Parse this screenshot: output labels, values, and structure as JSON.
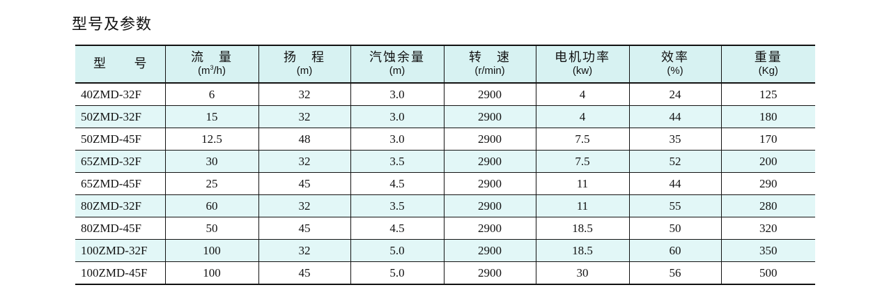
{
  "title": "型号及参数",
  "colors": {
    "header_bg": "#d7f2f2",
    "alt_row_bg": "#e2f7f7",
    "border": "#111111"
  },
  "table": {
    "headers": [
      {
        "label_a": "型",
        "label_b": "号",
        "unit": ""
      },
      {
        "label": "流　量",
        "unit_pre": "(m",
        "unit_sup": "3",
        "unit_post": "/h)"
      },
      {
        "label": "扬　程",
        "unit": "(m)"
      },
      {
        "label": "汽蚀余量",
        "unit": "(m)"
      },
      {
        "label": "转　速",
        "unit": "(r/min)"
      },
      {
        "label": "电机功率",
        "unit": "(kw)"
      },
      {
        "label": "效率",
        "unit": "(%)"
      },
      {
        "label": "重量",
        "unit": "(Kg)"
      }
    ],
    "rows": [
      [
        "40ZMD-32F",
        "6",
        "32",
        "3.0",
        "2900",
        "4",
        "24",
        "125"
      ],
      [
        "50ZMD-32F",
        "15",
        "32",
        "3.0",
        "2900",
        "4",
        "44",
        "180"
      ],
      [
        "50ZMD-45F",
        "12.5",
        "48",
        "3.0",
        "2900",
        "7.5",
        "35",
        "170"
      ],
      [
        "65ZMD-32F",
        "30",
        "32",
        "3.5",
        "2900",
        "7.5",
        "52",
        "200"
      ],
      [
        "65ZMD-45F",
        "25",
        "45",
        "4.5",
        "2900",
        "11",
        "44",
        "290"
      ],
      [
        "80ZMD-32F",
        "60",
        "32",
        "3.5",
        "2900",
        "11",
        "55",
        "280"
      ],
      [
        "80ZMD-45F",
        "50",
        "45",
        "4.5",
        "2900",
        "18.5",
        "50",
        "320"
      ],
      [
        "100ZMD-32F",
        "100",
        "32",
        "5.0",
        "2900",
        "18.5",
        "60",
        "350"
      ],
      [
        "100ZMD-45F",
        "100",
        "45",
        "5.0",
        "2900",
        "30",
        "56",
        "500"
      ]
    ]
  }
}
